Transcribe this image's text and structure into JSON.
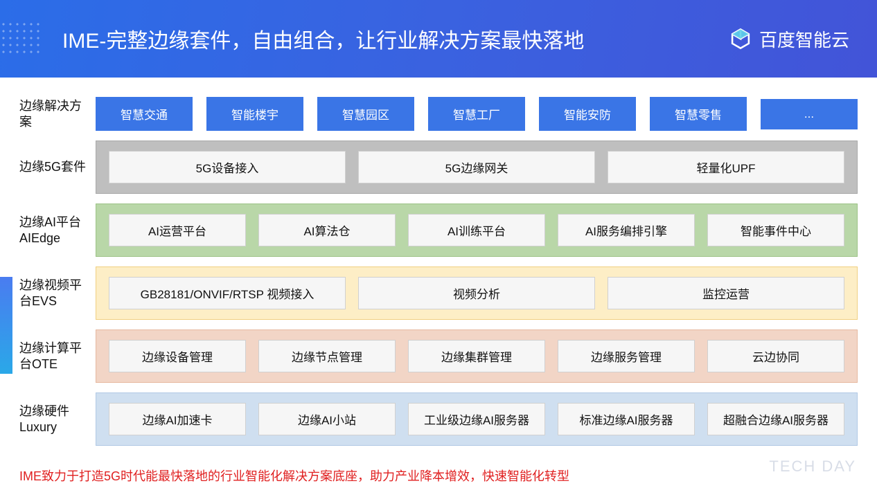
{
  "header": {
    "title": "IME-完整边缘套件，自由组合，让行业解决方案最快落地",
    "brand": "百度智能云"
  },
  "rows": [
    {
      "label": "边缘解决方案",
      "style": "solutions",
      "bg": "transparent",
      "items": [
        "智慧交通",
        "智能楼宇",
        "智慧园区",
        "智慧工厂",
        "智能安防",
        "智慧零售",
        "..."
      ]
    },
    {
      "label": "边缘5G套件",
      "bg": "#bfbfbf",
      "border": "#a8a8a8",
      "items": [
        "5G设备接入",
        "5G边缘网关",
        "轻量化UPF"
      ]
    },
    {
      "label": "边缘AI平台AIEdge",
      "bg": "#b9d7a8",
      "border": "#9cc285",
      "items": [
        "AI运营平台",
        "AI算法仓",
        "AI训练平台",
        "AI服务编排引擎",
        "智能事件中心"
      ]
    },
    {
      "label": "边缘视频平台EVS",
      "bg": "#fdeec6",
      "border": "#f0cf80",
      "items": [
        "GB28181/ONVIF/RTSP 视频接入",
        "视频分析",
        "监控运营"
      ]
    },
    {
      "label": "边缘计算平台OTE",
      "bg": "#f2d5c6",
      "border": "#e6b89f",
      "items": [
        "边缘设备管理",
        "边缘节点管理",
        "边缘集群管理",
        "边缘服务管理",
        "云边协同"
      ]
    },
    {
      "label": "边缘硬件Luxury",
      "bg": "#cfdff0",
      "border": "#b0c8e4",
      "items": [
        "边缘AI加速卡",
        "边缘AI小站",
        "工业级边缘AI服务器",
        "标准边缘AI服务器",
        "超融合边缘AI服务器"
      ]
    }
  ],
  "footer": "IME致力于打造5G时代能最快落地的行业智能化解决方案底座，助力产业降本增效，快速智能化转型",
  "watermark": "TECH DAY",
  "colors": {
    "header_gradient_from": "#2b6de8",
    "header_gradient_to": "#4254d8",
    "solution_pill_bg": "#3a75e6",
    "footer_text": "#e02020"
  }
}
